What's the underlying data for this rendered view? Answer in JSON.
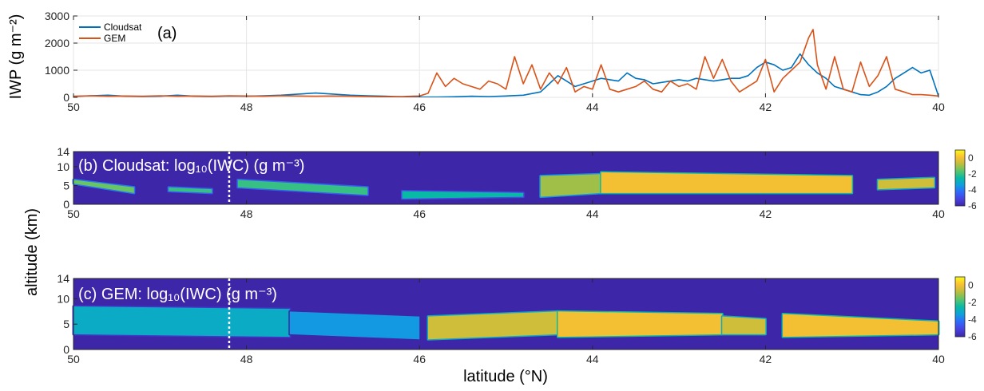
{
  "chart_data": [
    {
      "id": "a",
      "type": "line",
      "panel_label": "(a)",
      "ylabel": "IWP (g m⁻²)",
      "xlim": [
        50,
        40
      ],
      "ylim": [
        0,
        3000
      ],
      "xticks": [
        "50",
        "48",
        "46",
        "44",
        "42",
        "40"
      ],
      "yticks": [
        "0",
        "1000",
        "2000",
        "3000"
      ],
      "grid": true,
      "legend_position": "top-left",
      "series": [
        {
          "name": "Cloudsat",
          "color": "#0072BD",
          "x": [
            50,
            49.8,
            49.6,
            49.4,
            49.2,
            49.0,
            48.8,
            48.6,
            48.4,
            48.2,
            48.0,
            47.8,
            47.6,
            47.4,
            47.2,
            47.0,
            46.8,
            46.6,
            46.4,
            46.2,
            46.0,
            45.8,
            45.6,
            45.4,
            45.2,
            45.0,
            44.8,
            44.6,
            44.5,
            44.4,
            44.3,
            44.2,
            44.1,
            44.0,
            43.9,
            43.8,
            43.7,
            43.6,
            43.5,
            43.4,
            43.3,
            43.2,
            43.1,
            43.0,
            42.9,
            42.8,
            42.7,
            42.6,
            42.5,
            42.4,
            42.3,
            42.2,
            42.1,
            42.0,
            41.9,
            41.8,
            41.7,
            41.6,
            41.5,
            41.4,
            41.3,
            41.2,
            41.1,
            41.0,
            40.9,
            40.8,
            40.7,
            40.6,
            40.5,
            40.4,
            40.3,
            40.2,
            40.1,
            40.0
          ],
          "y": [
            30,
            60,
            80,
            40,
            30,
            40,
            80,
            40,
            30,
            50,
            40,
            60,
            80,
            120,
            160,
            120,
            80,
            60,
            40,
            20,
            10,
            10,
            20,
            40,
            30,
            50,
            80,
            200,
            500,
            800,
            600,
            400,
            500,
            600,
            700,
            650,
            600,
            900,
            700,
            650,
            500,
            550,
            600,
            650,
            600,
            700,
            650,
            600,
            650,
            700,
            700,
            800,
            1100,
            1300,
            1200,
            1000,
            1100,
            1600,
            1200,
            900,
            700,
            400,
            300,
            200,
            100,
            80,
            200,
            400,
            700,
            900,
            1100,
            900,
            1000,
            50
          ]
        },
        {
          "name": "GEM",
          "color": "#D95319",
          "x": [
            50,
            49.8,
            49.6,
            49.4,
            49.2,
            49.0,
            48.8,
            48.6,
            48.4,
            48.2,
            48.0,
            47.8,
            47.6,
            47.4,
            47.2,
            47.0,
            46.8,
            46.6,
            46.4,
            46.2,
            46.0,
            45.9,
            45.8,
            45.7,
            45.6,
            45.5,
            45.4,
            45.3,
            45.2,
            45.1,
            45.0,
            44.9,
            44.8,
            44.7,
            44.6,
            44.5,
            44.4,
            44.3,
            44.2,
            44.1,
            44.0,
            43.9,
            43.8,
            43.7,
            43.6,
            43.5,
            43.4,
            43.3,
            43.2,
            43.1,
            43.0,
            42.9,
            42.8,
            42.7,
            42.6,
            42.5,
            42.4,
            42.3,
            42.2,
            42.1,
            42.0,
            41.9,
            41.8,
            41.7,
            41.6,
            41.5,
            41.45,
            41.4,
            41.3,
            41.2,
            41.1,
            41.0,
            40.9,
            40.8,
            40.7,
            40.6,
            40.5,
            40.4,
            40.3,
            40.2,
            40.1,
            40.0
          ],
          "y": [
            40,
            60,
            40,
            50,
            40,
            60,
            40,
            50,
            40,
            60,
            50,
            40,
            60,
            50,
            40,
            50,
            40,
            30,
            20,
            30,
            50,
            150,
            900,
            400,
            700,
            500,
            400,
            300,
            600,
            500,
            300,
            1500,
            500,
            1200,
            300,
            900,
            500,
            1100,
            200,
            400,
            300,
            1200,
            300,
            200,
            300,
            400,
            600,
            300,
            200,
            600,
            400,
            500,
            300,
            1500,
            700,
            1400,
            600,
            200,
            400,
            600,
            1400,
            200,
            700,
            1000,
            1300,
            2200,
            2500,
            1200,
            300,
            1500,
            300,
            200,
            1300,
            400,
            800,
            1500,
            300,
            200,
            100,
            100,
            80,
            50
          ]
        }
      ]
    },
    {
      "id": "b",
      "type": "heatmap",
      "title": "(b) Cloudsat: log₁₀(IWC) (g m⁻³)",
      "xlim": [
        50,
        40
      ],
      "ylim": [
        0,
        14
      ],
      "xticks": [
        "50",
        "48",
        "46",
        "44",
        "42",
        "40"
      ],
      "yticks": [
        "0",
        "5",
        "10",
        "14"
      ],
      "colorbar": {
        "range": [
          -6,
          1
        ],
        "ticks": [
          "0",
          "-2",
          "-4",
          "-6"
        ]
      },
      "background_value": -6,
      "marker_latitude": 48.2,
      "segments": [
        {
          "x": [
            50.0,
            49.3
          ],
          "bottom": [
            5.5,
            3.0
          ],
          "top": [
            6.5,
            4.5
          ],
          "value": -1.5
        },
        {
          "x": [
            48.9,
            48.4
          ],
          "bottom": [
            3.5,
            3.0
          ],
          "top": [
            4.5,
            4.0
          ],
          "value": -2.0
        },
        {
          "x": [
            48.1,
            46.6
          ],
          "bottom": [
            4.5,
            2.5
          ],
          "top": [
            6.5,
            4.5
          ],
          "value": -2.0
        },
        {
          "x": [
            46.2,
            44.8
          ],
          "bottom": [
            1.5,
            2.0
          ],
          "top": [
            3.5,
            3.0
          ],
          "value": -2.5
        },
        {
          "x": [
            44.6,
            43.9
          ],
          "bottom": [
            2.0,
            3.0
          ],
          "top": [
            7.5,
            8.0
          ],
          "value": -1.0
        },
        {
          "x": [
            43.9,
            41.0
          ],
          "bottom": [
            3.0,
            3.0
          ],
          "top": [
            8.5,
            7.5
          ],
          "value": 0.0
        },
        {
          "x": [
            40.7,
            40.05
          ],
          "bottom": [
            4.0,
            4.5
          ],
          "top": [
            6.5,
            7.0
          ],
          "value": -0.5
        }
      ]
    },
    {
      "id": "c",
      "type": "heatmap",
      "title": "(c) GEM: log₁₀(IWC) (g m⁻³)",
      "xlabel": "latitude (°N)",
      "xlim": [
        50,
        40
      ],
      "ylim": [
        0,
        14
      ],
      "xticks": [
        "50",
        "48",
        "46",
        "44",
        "42",
        "40"
      ],
      "yticks": [
        "0",
        "5",
        "10",
        "14"
      ],
      "colorbar": {
        "range": [
          -6,
          1
        ],
        "ticks": [
          "0",
          "-2",
          "-4",
          "-6"
        ]
      },
      "background_value": -6,
      "marker_latitude": 48.2,
      "segments": [
        {
          "x": [
            50.0,
            47.5
          ],
          "bottom": [
            3.0,
            2.5
          ],
          "top": [
            8.5,
            8.0
          ],
          "value": -3.0
        },
        {
          "x": [
            47.5,
            46.0
          ],
          "bottom": [
            3.0,
            2.0
          ],
          "top": [
            7.5,
            6.5
          ],
          "value": -3.5
        },
        {
          "x": [
            45.9,
            44.4
          ],
          "bottom": [
            2.0,
            3.0
          ],
          "top": [
            6.5,
            7.5
          ],
          "value": -0.5
        },
        {
          "x": [
            44.4,
            42.5
          ],
          "bottom": [
            2.5,
            3.0
          ],
          "top": [
            7.5,
            7.0
          ],
          "value": 0.0
        },
        {
          "x": [
            42.5,
            42.0
          ],
          "bottom": [
            3.0,
            3.0
          ],
          "top": [
            6.5,
            6.0
          ],
          "value": -0.5
        },
        {
          "x": [
            41.8,
            40.0
          ],
          "bottom": [
            2.5,
            3.0
          ],
          "top": [
            7.0,
            5.5
          ],
          "value": 0.0
        }
      ]
    }
  ],
  "shared_ylabel": "altitude (km)",
  "colormap": [
    "#3E26A8",
    "#4742E0",
    "#2F69FD",
    "#0EA0DD",
    "#08BAA5",
    "#5BC56B",
    "#BCBD3C",
    "#FCC033",
    "#F9FB15"
  ]
}
